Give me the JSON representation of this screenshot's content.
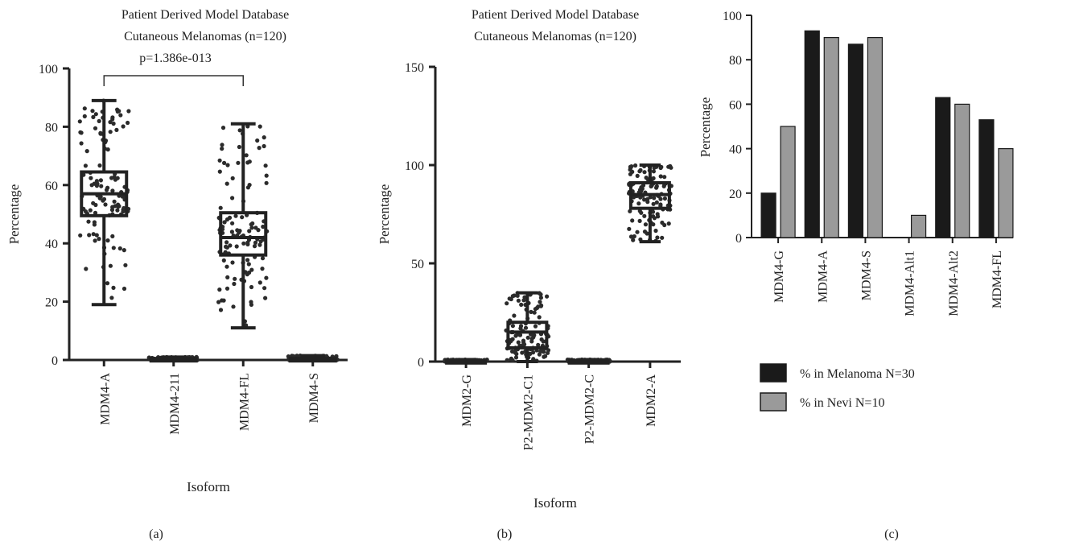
{
  "chart_data": [
    {
      "panel_label": "(a)",
      "type": "box",
      "title": [
        "Patient Derived Model Database",
        "Cutaneous Melanomas (n=120)"
      ],
      "annotation": "p=1.386e-013",
      "xlabel": "Isoform",
      "ylabel": "Percentage",
      "ylim": [
        0,
        100
      ],
      "yticks": [
        0,
        20,
        40,
        60,
        80,
        100
      ],
      "categories": [
        "MDM4-A",
        "MDM4-211",
        "MDM4-FL",
        "MDM4-S"
      ],
      "boxes": [
        {
          "min": 19,
          "q1": 49.5,
          "median": 57,
          "q3": 64.5,
          "max": 89,
          "n": 120
        },
        {
          "min": 0,
          "q1": 0,
          "median": 0,
          "q3": 0.5,
          "max": 1,
          "n": 120
        },
        {
          "min": 11,
          "q1": 36,
          "median": 42,
          "q3": 50.5,
          "max": 81,
          "n": 120
        },
        {
          "min": 0,
          "q1": 0,
          "median": 0,
          "q3": 0.5,
          "max": 1.5,
          "n": 120
        }
      ],
      "comparison": {
        "from": "MDM4-A",
        "to": "MDM4-FL"
      },
      "grid": false
    },
    {
      "panel_label": "(b)",
      "type": "box",
      "title": [
        "Patient Derived Model Database",
        "Cutaneous Melanomas (n=120)"
      ],
      "xlabel": "Isoform",
      "ylabel": "Percentage",
      "ylim": [
        0,
        150
      ],
      "yticks": [
        0,
        50,
        100,
        150
      ],
      "categories": [
        "MDM2-G",
        "P2-MDM2-C1",
        "P2-MDM2-C",
        "MDM2-A"
      ],
      "boxes": [
        {
          "min": 0,
          "q1": 0,
          "median": 0,
          "q3": 0.5,
          "max": 1,
          "n": 120
        },
        {
          "min": 0,
          "q1": 7,
          "median": 15,
          "q3": 20,
          "max": 35,
          "n": 120
        },
        {
          "min": 0,
          "q1": 0,
          "median": 0,
          "q3": 0.5,
          "max": 1,
          "n": 120
        },
        {
          "min": 61,
          "q1": 78,
          "median": 85,
          "q3": 91,
          "max": 100,
          "n": 120
        }
      ],
      "grid": false
    },
    {
      "panel_label": "(c)",
      "type": "bar",
      "ylabel": "Percentage",
      "ylim": [
        0,
        100
      ],
      "yticks": [
        0,
        20,
        40,
        60,
        80,
        100
      ],
      "categories": [
        "MDM4-G",
        "MDM4-A",
        "MDM4-S",
        "MDM4-Alt1",
        "MDM4-Alt2",
        "MDM4-FL"
      ],
      "series": [
        {
          "name": "% in Melanoma N=30",
          "color": "#1a1a1a",
          "values": [
            20,
            93,
            87,
            0,
            63,
            53
          ]
        },
        {
          "name": "% in Nevi N=10",
          "color": "#9a9a9a",
          "values": [
            50,
            90,
            90,
            10,
            60,
            40
          ]
        }
      ],
      "legend_position": "bottom-left",
      "grid": false
    }
  ]
}
